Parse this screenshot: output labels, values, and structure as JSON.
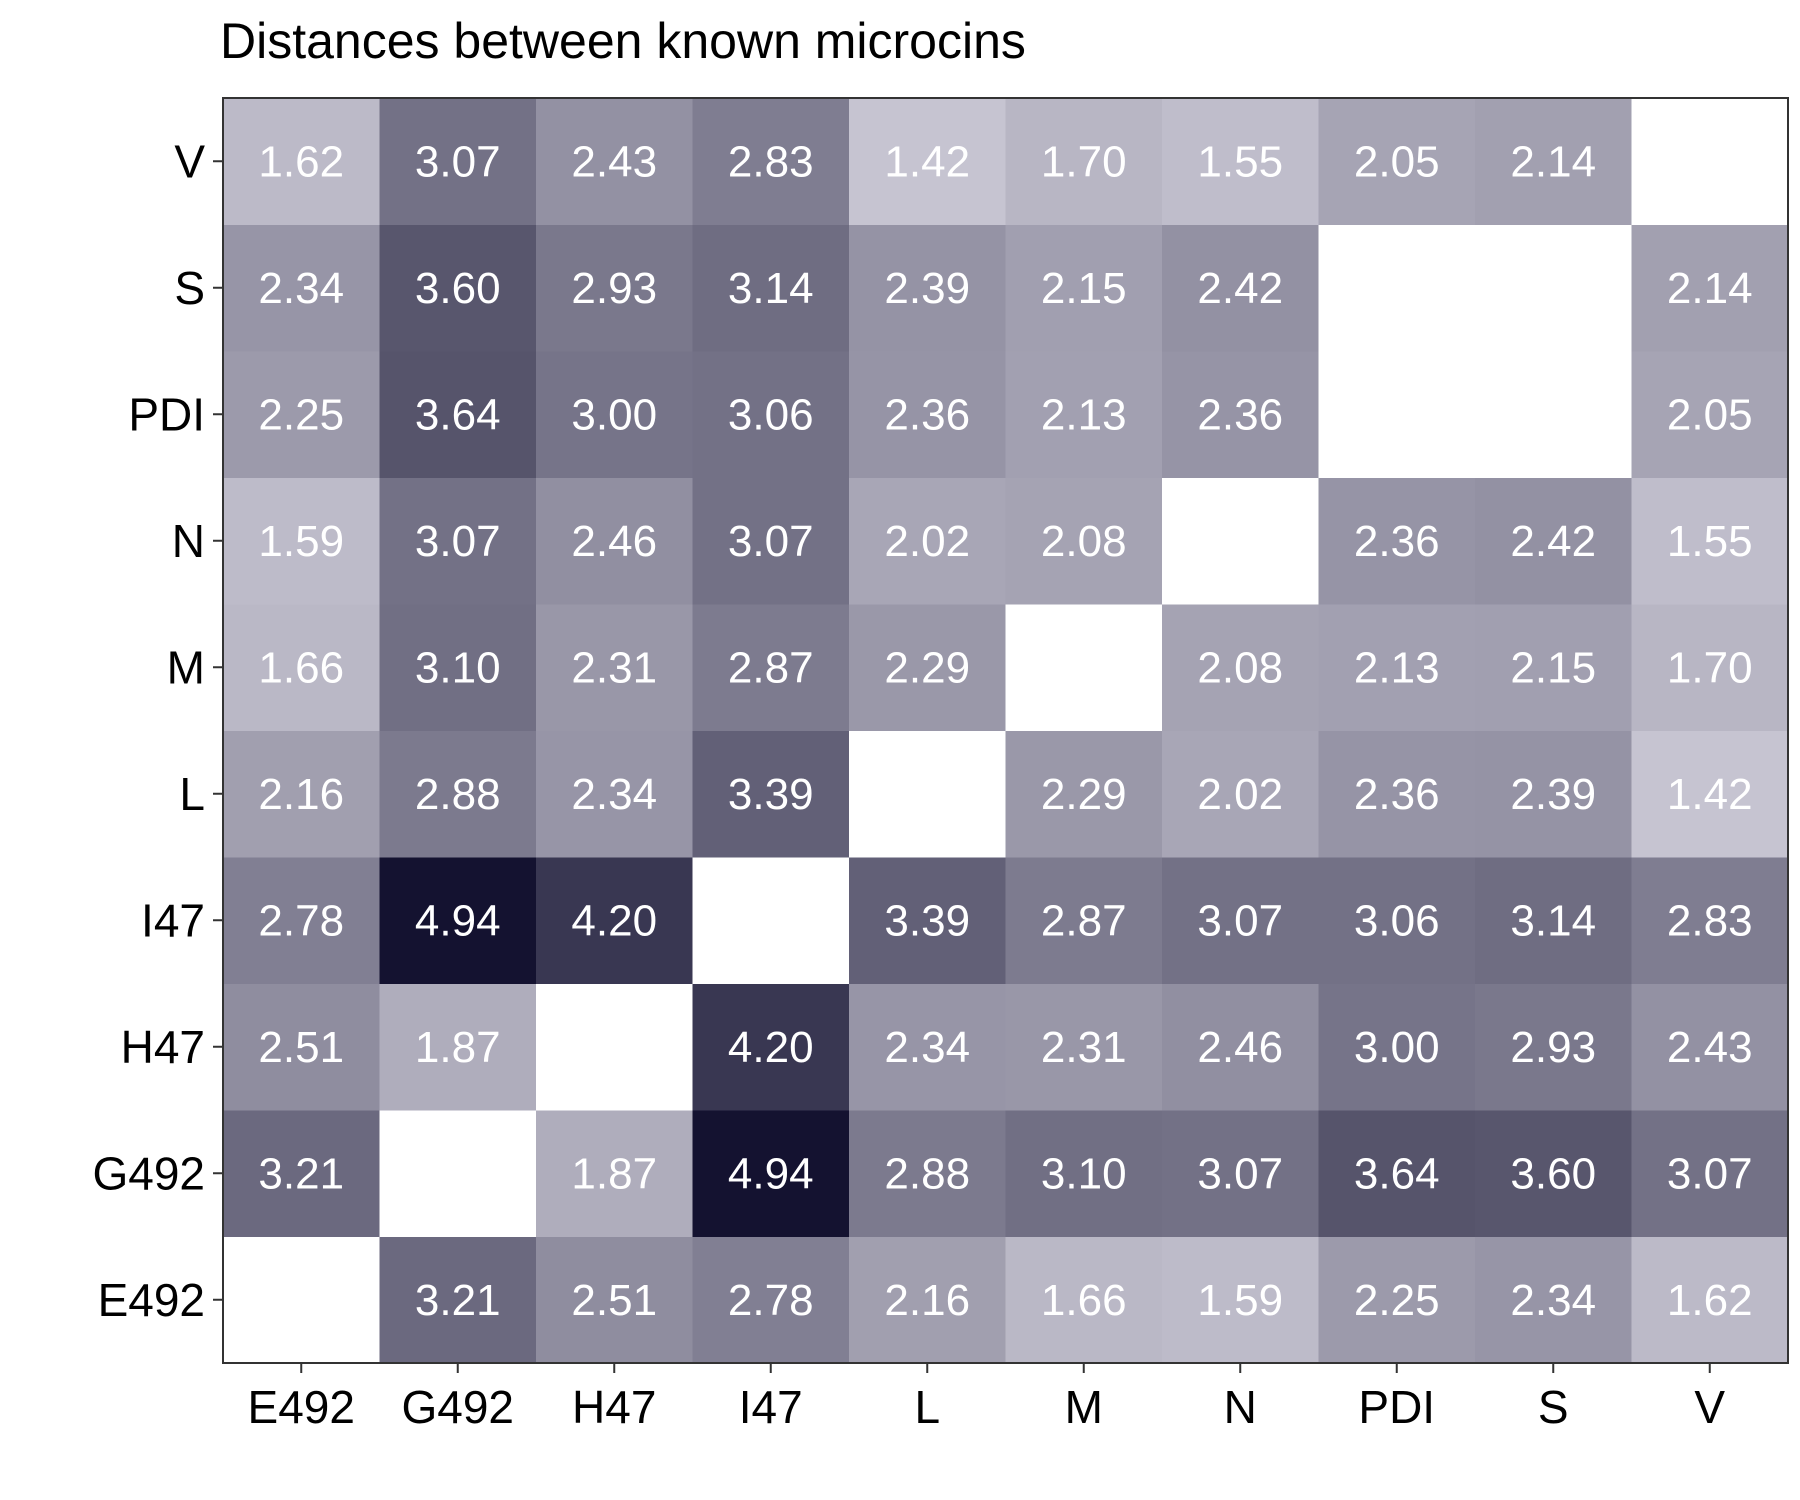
{
  "chart_data": {
    "type": "heatmap",
    "title": "Distances between known microcins",
    "xlabel": "",
    "ylabel": "",
    "x_categories": [
      "E492",
      "G492",
      "H47",
      "I47",
      "L",
      "M",
      "N",
      "PDI",
      "S",
      "V"
    ],
    "y_categories": [
      "E492",
      "G492",
      "H47",
      "I47",
      "L",
      "M",
      "N",
      "PDI",
      "S",
      "V"
    ],
    "values": [
      [
        null,
        3.21,
        2.51,
        2.78,
        2.16,
        1.66,
        1.59,
        2.25,
        2.34,
        1.62
      ],
      [
        3.21,
        null,
        1.87,
        4.94,
        2.88,
        3.1,
        3.07,
        3.64,
        3.6,
        3.07
      ],
      [
        2.51,
        1.87,
        null,
        4.2,
        2.34,
        2.31,
        2.46,
        3.0,
        2.93,
        2.43
      ],
      [
        2.78,
        4.94,
        4.2,
        null,
        3.39,
        2.87,
        3.07,
        3.06,
        3.14,
        2.83
      ],
      [
        2.16,
        2.88,
        2.34,
        3.39,
        null,
        2.29,
        2.02,
        2.36,
        2.39,
        1.42
      ],
      [
        1.66,
        3.1,
        2.31,
        2.87,
        2.29,
        null,
        2.08,
        2.13,
        2.15,
        1.7
      ],
      [
        1.59,
        3.07,
        2.46,
        3.07,
        2.02,
        2.08,
        null,
        2.36,
        2.42,
        1.55
      ],
      [
        2.25,
        3.64,
        3.0,
        3.06,
        2.36,
        2.13,
        2.36,
        null,
        null,
        2.05
      ],
      [
        2.34,
        3.6,
        2.93,
        3.14,
        2.39,
        2.15,
        2.42,
        null,
        null,
        2.14
      ],
      [
        1.62,
        3.07,
        2.43,
        2.83,
        1.42,
        1.7,
        1.55,
        2.05,
        2.14,
        null
      ]
    ],
    "value_range": [
      1.42,
      4.94
    ],
    "color_low": "#c6c4d1",
    "color_high": "#141230",
    "missing_color": "#ffffff",
    "label_color": "#ffffff",
    "grid": false,
    "legend": "none"
  }
}
